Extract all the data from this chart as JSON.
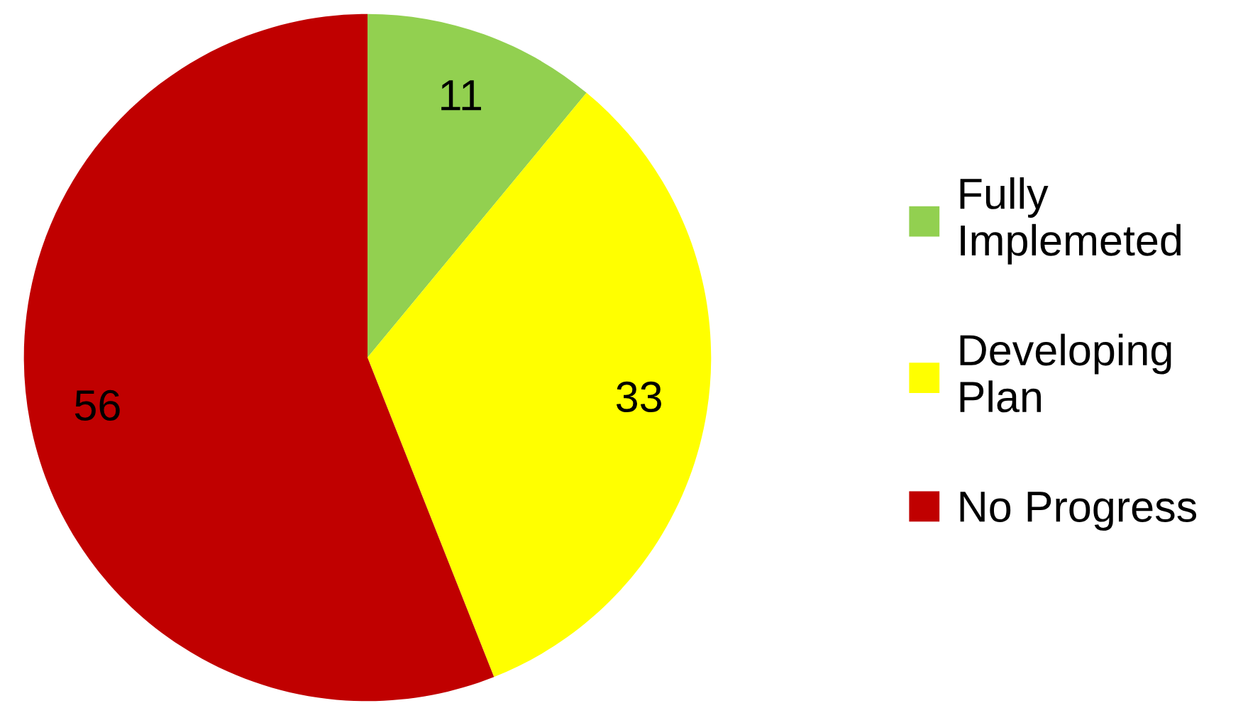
{
  "chart_data": {
    "type": "pie",
    "categories": [
      "Fully\nImplemeted",
      "Developing\nPlan",
      "No Progress"
    ],
    "values": [
      11,
      33,
      56
    ],
    "colors": [
      "#92d050",
      "#ffff00",
      "#c00000"
    ],
    "data_labels": true,
    "legend": "right"
  }
}
